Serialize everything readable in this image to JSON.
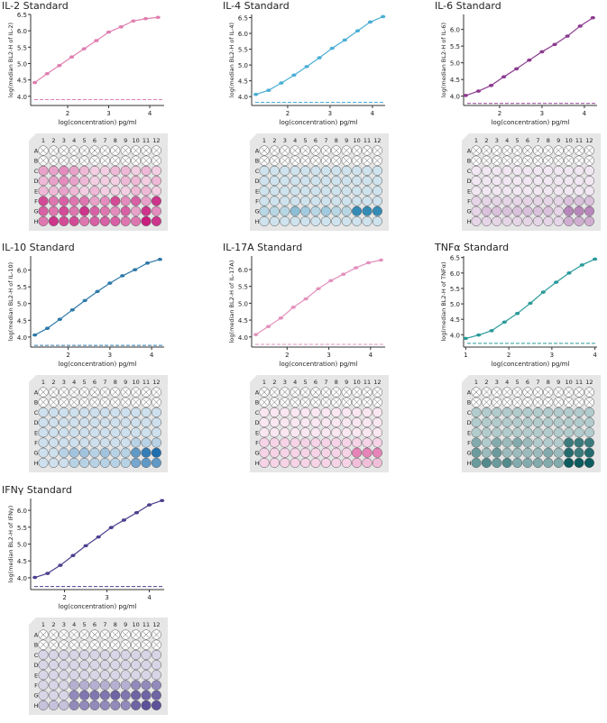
{
  "chart_data": [
    {
      "type": "line",
      "title": "IL-2 Standard",
      "ylabel": "log(median BL2-H of IL-2)",
      "xlabel": "log(concentration) pg/ml",
      "color": "#e07fb0",
      "xlim": [
        1.1,
        4.35
      ],
      "ylim": [
        3.72,
        6.5
      ],
      "xticks": [
        2,
        3,
        4
      ],
      "yticks": [
        4.0,
        4.5,
        5.0,
        5.5,
        6.0,
        6.5
      ],
      "x": [
        1.2,
        1.5,
        1.8,
        2.1,
        2.4,
        2.7,
        3.0,
        3.3,
        3.6,
        3.9,
        4.2
      ],
      "y": [
        4.42,
        4.69,
        4.94,
        5.2,
        5.45,
        5.7,
        5.96,
        6.12,
        6.3,
        6.37,
        6.41
      ],
      "baseline": 3.9,
      "plate": {
        "color": "#c81e7e",
        "rows": [
          "",
          "",
          "334321122121",
          "234321112212",
          "223212111221",
          "756553474638",
          "657586546384",
          "587756665598"
        ]
      }
    },
    {
      "type": "line",
      "title": "IL-4 Standard",
      "ylabel": "log(median BL2-H of IL-4)",
      "xlabel": "log(concentration) pg/ml",
      "color": "#4aaed6",
      "xlim": [
        1.15,
        4.3
      ],
      "ylim": [
        3.72,
        6.6
      ],
      "xticks": [
        2,
        3,
        4
      ],
      "yticks": [
        4.0,
        4.5,
        5.0,
        5.5,
        6.0,
        6.5
      ],
      "x": [
        1.25,
        1.55,
        1.85,
        2.15,
        2.45,
        2.75,
        3.05,
        3.35,
        3.65,
        3.95,
        4.25
      ],
      "y": [
        4.07,
        4.2,
        4.43,
        4.68,
        4.95,
        5.23,
        5.53,
        5.79,
        6.08,
        6.36,
        6.53
      ],
      "baseline": 3.82,
      "plate": {
        "color": "#1e7fae",
        "rows": [
          "",
          "",
          "111111111111",
          "111111111111",
          "111111111111",
          "111111111111",
          "222432322888",
          "111111111111"
        ]
      }
    },
    {
      "type": "line",
      "title": "IL-6 Standard",
      "ylabel": "log(median BL2-H of IL-6)",
      "xlabel": "log(concentration) pg/ml",
      "color": "#8b3a8f",
      "xlim": [
        1.15,
        4.3
      ],
      "ylim": [
        3.72,
        6.45
      ],
      "xticks": [
        2,
        3,
        4
      ],
      "yticks": [
        4.0,
        4.5,
        5.0,
        5.5,
        6.0
      ],
      "x": [
        1.2,
        1.5,
        1.8,
        2.1,
        2.4,
        2.7,
        3.0,
        3.3,
        3.6,
        3.9,
        4.2
      ],
      "y": [
        4.02,
        4.15,
        4.32,
        4.58,
        4.82,
        5.08,
        5.33,
        5.55,
        5.8,
        6.1,
        6.35
      ],
      "baseline": 3.78,
      "plate": {
        "color": "#8b3a8f",
        "rows": [
          "",
          "",
          "000000000000",
          "000000000000",
          "000000000000",
          "111111111222",
          "122222221555",
          "111111111333"
        ]
      }
    },
    {
      "type": "line",
      "title": "IL-10 Standard",
      "ylabel": "log(median BL2-H of IL-10)",
      "xlabel": "log(concentration) pg/ml",
      "color": "#2e78a8",
      "xlim": [
        1.1,
        4.3
      ],
      "ylim": [
        3.7,
        6.42
      ],
      "xticks": [
        2,
        3,
        4
      ],
      "yticks": [
        4.0,
        4.5,
        5.0,
        5.5,
        6.0
      ],
      "x": [
        1.2,
        1.5,
        1.8,
        2.1,
        2.4,
        2.7,
        3.0,
        3.3,
        3.6,
        3.9,
        4.2
      ],
      "y": [
        4.06,
        4.26,
        4.53,
        4.81,
        5.09,
        5.36,
        5.61,
        5.83,
        6.01,
        6.21,
        6.32
      ],
      "baseline": 3.75,
      "plate": {
        "color": "#1f6fae",
        "rows": [
          "",
          "",
          "111111111111",
          "111111111111",
          "111111111111",
          "111111111222",
          "112332322689",
          "111222222566"
        ]
      }
    },
    {
      "type": "line",
      "title": "IL-17A Standard",
      "ylabel": "log(median BL2-H of IL-17A)",
      "xlabel": "log(concentration) pg/ml",
      "color": "#e391bd",
      "xlim": [
        1.15,
        4.35
      ],
      "ylim": [
        3.7,
        6.4
      ],
      "xticks": [
        2,
        3,
        4
      ],
      "yticks": [
        4.0,
        4.5,
        5.0,
        5.5,
        6.0
      ],
      "x": [
        1.25,
        1.55,
        1.85,
        2.15,
        2.45,
        2.75,
        3.05,
        3.35,
        3.65,
        3.95,
        4.25
      ],
      "y": [
        4.07,
        4.31,
        4.56,
        4.88,
        5.13,
        5.43,
        5.67,
        5.86,
        6.05,
        6.2,
        6.28
      ],
      "baseline": 3.78,
      "plate": {
        "color": "#d6338a",
        "rows": [
          "",
          "",
          "000000000000",
          "000000000000",
          "000000000000",
          "111111111111",
          "111111111555",
          "111111111222"
        ]
      }
    },
    {
      "type": "line",
      "title": "TNFα Standard",
      "ylabel": "log(median BL2-H of TNFα)",
      "xlabel": "log(concentration) pg/ml",
      "color": "#2a9a9a",
      "xlim": [
        0.95,
        4.05
      ],
      "ylim": [
        3.6,
        6.55
      ],
      "xticks": [
        1,
        2,
        3,
        4
      ],
      "yticks": [
        4.0,
        4.5,
        5.0,
        5.5,
        6.0,
        6.5
      ],
      "x": [
        1.0,
        1.3,
        1.6,
        1.9,
        2.2,
        2.5,
        2.8,
        3.1,
        3.4,
        3.7,
        4.0
      ],
      "y": [
        3.88,
        3.99,
        4.13,
        4.41,
        4.69,
        5.02,
        5.38,
        5.7,
        6.0,
        6.26,
        6.45
      ],
      "baseline": 3.72,
      "plate": {
        "color": "#0c5b5e",
        "rows": [
          "",
          "",
          "222222222222",
          "222222222222",
          "222222222222",
          "424343222777",
          "535333343878",
          "565644444999"
        ]
      }
    },
    {
      "type": "line",
      "title": "IFNγ Standard",
      "ylabel": "log(median BL2-H of IFNγ)",
      "xlabel": "log(concentration) pg/ml",
      "color": "#4b3f8f",
      "xlim": [
        1.2,
        4.35
      ],
      "ylim": [
        3.65,
        6.35
      ],
      "xticks": [
        2,
        3,
        4
      ],
      "yticks": [
        4.0,
        4.5,
        5.0,
        5.5,
        6.0
      ],
      "x": [
        1.3,
        1.6,
        1.9,
        2.2,
        2.5,
        2.8,
        3.1,
        3.4,
        3.7,
        4.0,
        4.3
      ],
      "y": [
        4.01,
        4.13,
        4.37,
        4.66,
        4.95,
        5.21,
        5.49,
        5.71,
        5.93,
        6.16,
        6.29
      ],
      "baseline": 3.74,
      "plate": {
        "color": "#4b3f8f",
        "rows": [
          "",
          "",
          "111111111111",
          "111111111111",
          "111111111111",
          "111333333555",
          "111566676777",
          "222555555788"
        ]
      }
    }
  ],
  "plate_labels": {
    "cols": [
      "1",
      "2",
      "3",
      "4",
      "5",
      "6",
      "7",
      "8",
      "9",
      "10",
      "11",
      "12"
    ],
    "rows": [
      "A",
      "B",
      "C",
      "D",
      "E",
      "F",
      "G",
      "H"
    ]
  }
}
